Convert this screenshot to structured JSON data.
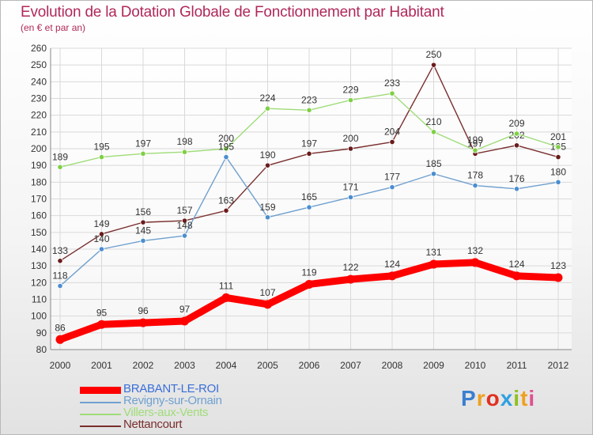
{
  "chart_data": {
    "type": "line",
    "title": "Evolution de la Dotation Globale de Fonctionnement par Habitant",
    "subtitle": "(en € et par an)",
    "xlabel": "",
    "ylabel": "",
    "ylim": [
      80,
      260
    ],
    "yticks": [
      80,
      90,
      100,
      110,
      120,
      130,
      140,
      150,
      160,
      170,
      180,
      190,
      200,
      210,
      220,
      230,
      240,
      250,
      260
    ],
    "categories": [
      "2000",
      "2001",
      "2002",
      "2003",
      "2004",
      "2005",
      "2006",
      "2007",
      "2008",
      "2009",
      "2010",
      "2011",
      "2012"
    ],
    "grid": true,
    "legend_position": "bottom-left",
    "series": [
      {
        "name": "BRABANT-LE-ROI",
        "color": "#ff0000",
        "marker": "#ff0000",
        "values": [
          86,
          95,
          96,
          97,
          111,
          107,
          119,
          122,
          124,
          131,
          132,
          124,
          123
        ]
      },
      {
        "name": "Revigny-sur-Ornain",
        "color": "#6fa0cf",
        "marker": "#4b8ed0",
        "values": [
          118,
          140,
          145,
          148,
          195,
          159,
          165,
          171,
          177,
          185,
          178,
          176,
          180
        ]
      },
      {
        "name": "Villers-aux-Vents",
        "color": "#9fdc78",
        "marker": "#7fd045",
        "values": [
          189,
          195,
          197,
          198,
          200,
          224,
          223,
          229,
          233,
          210,
          199,
          209,
          201
        ]
      },
      {
        "name": "Nettancourt",
        "color": "#7a2e2e",
        "marker": "#6a1c1c",
        "values": [
          133,
          149,
          156,
          157,
          163,
          190,
          197,
          200,
          204,
          250,
          197,
          202,
          195
        ]
      }
    ]
  },
  "logo": {
    "text": "Proxiti",
    "letter_colors": [
      "#3a7fd0",
      "#f0a020",
      "#e03020",
      "#30a0e0",
      "#90c020",
      "#f0a020",
      "#e05090"
    ]
  }
}
